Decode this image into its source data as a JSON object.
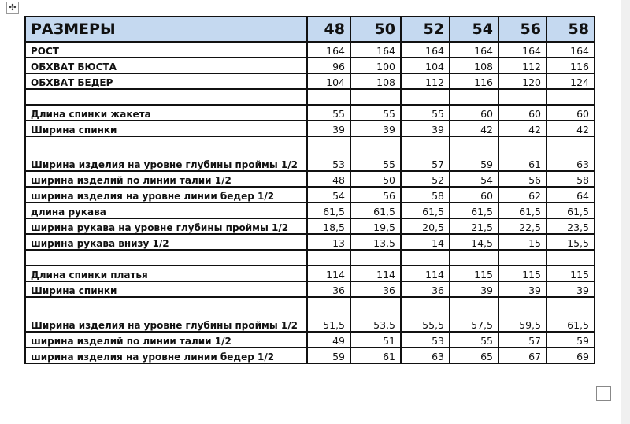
{
  "header": {
    "label": "РАЗМЕРЫ",
    "sizes": [
      "48",
      "50",
      "52",
      "54",
      "56",
      "58"
    ]
  },
  "rows": [
    {
      "label": "РОСТ",
      "values": [
        "164",
        "164",
        "164",
        "164",
        "164",
        "164"
      ]
    },
    {
      "label": "ОБХВАТ БЮСТА",
      "values": [
        "96",
        "100",
        "104",
        "108",
        "112",
        "116"
      ]
    },
    {
      "label": "ОБХВАТ БЕДЕР",
      "values": [
        "104",
        "108",
        "112",
        "116",
        "120",
        "124"
      ]
    },
    {
      "label": "",
      "values": [
        "",
        "",
        "",
        "",
        "",
        ""
      ]
    },
    {
      "label": "Длина спинки жакета",
      "values": [
        "55",
        "55",
        "55",
        "60",
        "60",
        "60"
      ]
    },
    {
      "label": "Ширина спинки",
      "values": [
        "39",
        "39",
        "39",
        "42",
        "42",
        "42"
      ]
    },
    {
      "label": "Ширина изделия на уровне глубины проймы 1/2",
      "values": [
        "53",
        "55",
        "57",
        "59",
        "61",
        "63"
      ],
      "tall": true
    },
    {
      "label": "ширина изделий по линии талии 1/2",
      "values": [
        "48",
        "50",
        "52",
        "54",
        "56",
        "58"
      ]
    },
    {
      "label": "ширина изделия на уровне линии бедер 1/2",
      "values": [
        "54",
        "56",
        "58",
        "60",
        "62",
        "64"
      ]
    },
    {
      "label": "длина рукава",
      "values": [
        "61,5",
        "61,5",
        "61,5",
        "61,5",
        "61,5",
        "61,5"
      ]
    },
    {
      "label": "ширина рукава на уровне глубины проймы 1/2",
      "values": [
        "18,5",
        "19,5",
        "20,5",
        "21,5",
        "22,5",
        "23,5"
      ]
    },
    {
      "label": "ширина рукава внизу 1/2",
      "values": [
        "13",
        "13,5",
        "14",
        "14,5",
        "15",
        "15,5"
      ]
    },
    {
      "label": "",
      "values": [
        "",
        "",
        "",
        "",
        "",
        ""
      ]
    },
    {
      "label": "Длина спинки платья",
      "values": [
        "114",
        "114",
        "114",
        "115",
        "115",
        "115"
      ]
    },
    {
      "label": "Ширина спинки",
      "values": [
        "36",
        "36",
        "36",
        "39",
        "39",
        "39"
      ]
    },
    {
      "label": "Ширина изделия на уровне глубины проймы 1/2",
      "values": [
        "51,5",
        "53,5",
        "55,5",
        "57,5",
        "59,5",
        "61,5"
      ],
      "tall": true
    },
    {
      "label": "ширина изделий по линии талии 1/2",
      "values": [
        "49",
        "51",
        "53",
        "55",
        "57",
        "59"
      ]
    },
    {
      "label": "ширина изделия на уровне линии бедер 1/2",
      "values": [
        "59",
        "61",
        "63",
        "65",
        "67",
        "69"
      ]
    }
  ],
  "icons": {
    "table_move": "move-arrows-icon"
  },
  "colors": {
    "header_bg": "#c5d9f0"
  }
}
